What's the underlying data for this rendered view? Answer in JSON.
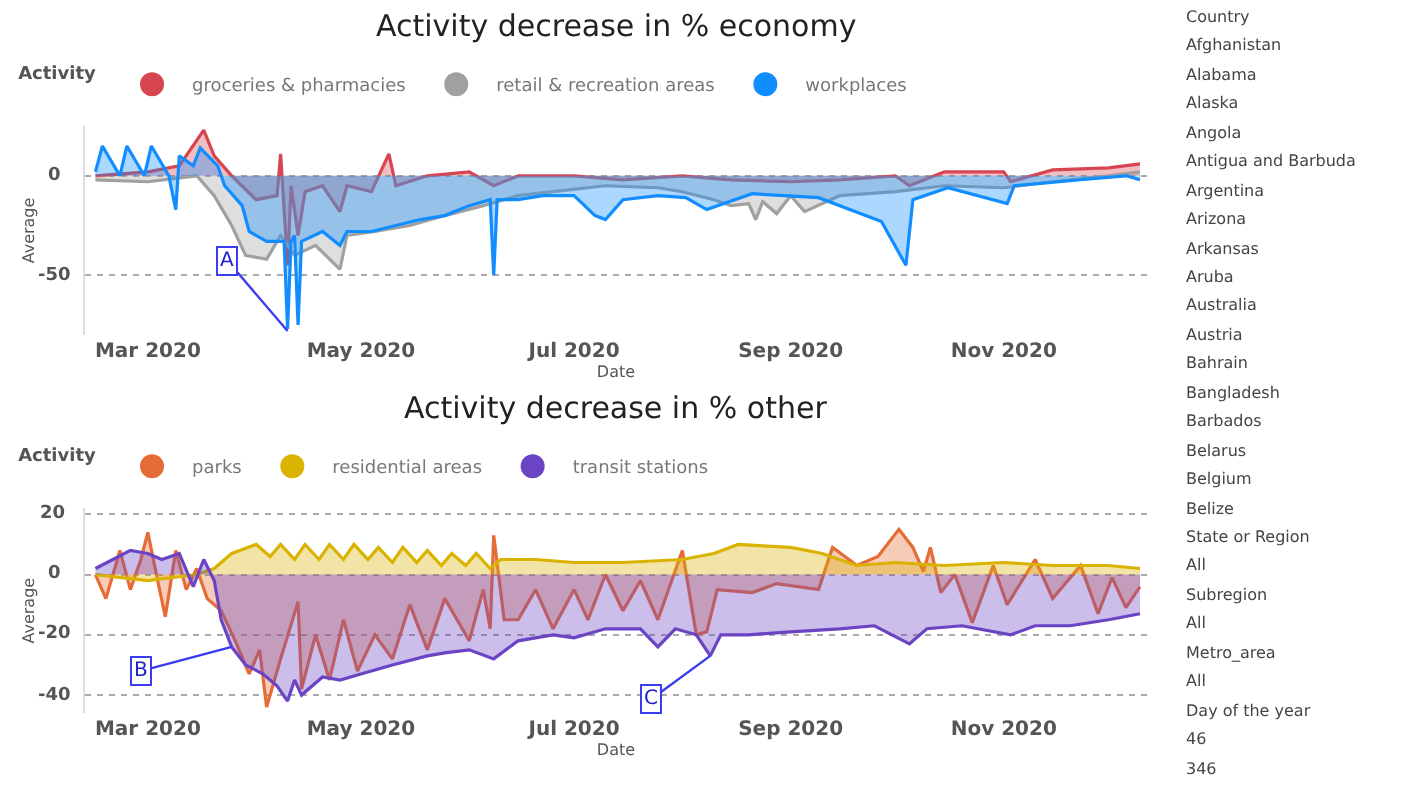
{
  "chart_data": [
    {
      "type": "area",
      "title": "Activity decrease in % economy",
      "xlabel": "Date",
      "ylabel": "Average",
      "legend_title": "Activity",
      "legend": "top left",
      "grid": "y",
      "line_style": "solid",
      "xlim": [
        "2020-02-12",
        "2020-12-12"
      ],
      "xticks": [
        {
          "value": "2020-03-01",
          "label": "Mar 2020"
        },
        {
          "value": "2020-05-01",
          "label": "May 2020"
        },
        {
          "value": "2020-07-01",
          "label": "Jul 2020"
        },
        {
          "value": "2020-09-01",
          "label": "Sep 2020"
        },
        {
          "value": "2020-11-01",
          "label": "Nov 2020"
        }
      ],
      "ylim": [
        -80,
        25
      ],
      "yticks": [
        -50,
        0
      ],
      "annotations": [
        {
          "text": "A",
          "x": "2020-04-10",
          "y": -78
        }
      ],
      "series": [
        {
          "name": "groceries & pharmacies",
          "color": "#d64550",
          "x": [
            "2020-02-15",
            "2020-03-01",
            "2020-03-10",
            "2020-03-17",
            "2020-03-20",
            "2020-03-25",
            "2020-04-01",
            "2020-04-07",
            "2020-04-08",
            "2020-04-10",
            "2020-04-11",
            "2020-04-13",
            "2020-04-15",
            "2020-04-20",
            "2020-04-25",
            "2020-04-27",
            "2020-05-04",
            "2020-05-09",
            "2020-05-11",
            "2020-05-20",
            "2020-06-01",
            "2020-06-08",
            "2020-06-15",
            "2020-07-01",
            "2020-07-15",
            "2020-08-01",
            "2020-08-15",
            "2020-09-01",
            "2020-09-15",
            "2020-10-01",
            "2020-10-05",
            "2020-10-15",
            "2020-11-01",
            "2020-11-03",
            "2020-11-15",
            "2020-12-01",
            "2020-12-10"
          ],
          "values": [
            0,
            2,
            5,
            23,
            10,
            0,
            -12,
            -10,
            11,
            -45,
            -5,
            -30,
            -8,
            -5,
            -18,
            -5,
            -8,
            11,
            -5,
            0,
            2,
            -5,
            0,
            0,
            -2,
            0,
            -2,
            -3,
            -2,
            0,
            -5,
            2,
            2,
            -3,
            3,
            4,
            6
          ]
        },
        {
          "name": "retail & recreation areas",
          "color": "#a0a0a0",
          "x": [
            "2020-02-15",
            "2020-03-01",
            "2020-03-15",
            "2020-03-20",
            "2020-03-25",
            "2020-03-29",
            "2020-04-04",
            "2020-04-08",
            "2020-04-12",
            "2020-04-18",
            "2020-04-25",
            "2020-04-27",
            "2020-05-05",
            "2020-05-15",
            "2020-05-25",
            "2020-06-05",
            "2020-06-15",
            "2020-06-25",
            "2020-07-10",
            "2020-07-25",
            "2020-08-01",
            "2020-08-10",
            "2020-08-15",
            "2020-08-20",
            "2020-08-22",
            "2020-08-24",
            "2020-08-28",
            "2020-09-01",
            "2020-09-05",
            "2020-09-15",
            "2020-10-01",
            "2020-10-15",
            "2020-11-01",
            "2020-11-15",
            "2020-12-01",
            "2020-12-10"
          ],
          "values": [
            -2,
            -3,
            0,
            -10,
            -25,
            -40,
            -42,
            -30,
            -40,
            -35,
            -47,
            -30,
            -28,
            -25,
            -20,
            -15,
            -10,
            -8,
            -5,
            -6,
            -8,
            -12,
            -15,
            -14,
            -22,
            -13,
            -19,
            -10,
            -18,
            -10,
            -8,
            -5,
            -6,
            -3,
            0,
            2
          ]
        },
        {
          "name": "workplaces",
          "color": "#118dff",
          "x": [
            "2020-02-15",
            "2020-02-17",
            "2020-02-22",
            "2020-02-24",
            "2020-02-29",
            "2020-03-02",
            "2020-03-07",
            "2020-03-09",
            "2020-03-10",
            "2020-03-14",
            "2020-03-16",
            "2020-03-21",
            "2020-03-23",
            "2020-03-28",
            "2020-03-30",
            "2020-04-04",
            "2020-04-09",
            "2020-04-10",
            "2020-04-11",
            "2020-04-12",
            "2020-04-13",
            "2020-04-14",
            "2020-04-20",
            "2020-04-25",
            "2020-04-27",
            "2020-05-04",
            "2020-05-11",
            "2020-05-18",
            "2020-05-25",
            "2020-06-01",
            "2020-06-07",
            "2020-06-08",
            "2020-06-09",
            "2020-06-15",
            "2020-06-22",
            "2020-07-01",
            "2020-07-07",
            "2020-07-10",
            "2020-07-15",
            "2020-07-25",
            "2020-08-02",
            "2020-08-08",
            "2020-08-21",
            "2020-09-09",
            "2020-09-27",
            "2020-10-04",
            "2020-10-06",
            "2020-10-16",
            "2020-11-02",
            "2020-11-04",
            "2020-11-23",
            "2020-12-06",
            "2020-12-10"
          ],
          "values": [
            2,
            15,
            0,
            15,
            0,
            15,
            0,
            -17,
            10,
            5,
            14,
            5,
            -5,
            -15,
            -28,
            -33,
            -33,
            -77,
            -33,
            -30,
            -75,
            -33,
            -28,
            -35,
            -28,
            -28,
            -25,
            -22,
            -20,
            -15,
            -12,
            -50,
            -12,
            -12,
            -10,
            -10,
            -20,
            -22,
            -12,
            -10,
            -11,
            -17,
            -9,
            -11,
            -23,
            -45,
            -12,
            -6,
            -14,
            -5,
            -2,
            0,
            -2
          ]
        }
      ]
    },
    {
      "type": "area",
      "title": "Activity decrease in % other",
      "xlabel": "Date",
      "ylabel": "Average",
      "legend_title": "Activity",
      "legend": "top left",
      "grid": "y",
      "line_style": "solid",
      "xlim": [
        "2020-02-12",
        "2020-12-12"
      ],
      "xticks": [
        {
          "value": "2020-03-01",
          "label": "Mar 2020"
        },
        {
          "value": "2020-05-01",
          "label": "May 2020"
        },
        {
          "value": "2020-07-01",
          "label": "Jul 2020"
        },
        {
          "value": "2020-09-01",
          "label": "Sep 2020"
        },
        {
          "value": "2020-11-01",
          "label": "Nov 2020"
        }
      ],
      "ylim": [
        -46,
        22
      ],
      "yticks": [
        -40,
        -20,
        0,
        20
      ],
      "annotations": [
        {
          "text": "B",
          "x": "2020-03-25",
          "y": -24
        },
        {
          "text": "C",
          "x": "2020-08-09",
          "y": -27
        }
      ],
      "series": [
        {
          "name": "parks",
          "color": "#e66c37",
          "x": [
            "2020-02-15",
            "2020-02-18",
            "2020-02-22",
            "2020-02-25",
            "2020-02-28",
            "2020-03-01",
            "2020-03-04",
            "2020-03-06",
            "2020-03-09",
            "2020-03-12",
            "2020-03-15",
            "2020-03-18",
            "2020-03-22",
            "2020-03-26",
            "2020-03-30",
            "2020-04-02",
            "2020-04-04",
            "2020-04-08",
            "2020-04-13",
            "2020-04-14",
            "2020-04-18",
            "2020-04-22",
            "2020-04-26",
            "2020-04-30",
            "2020-05-05",
            "2020-05-10",
            "2020-05-15",
            "2020-05-20",
            "2020-05-25",
            "2020-06-01",
            "2020-06-05",
            "2020-06-07",
            "2020-06-08",
            "2020-06-11",
            "2020-06-15",
            "2020-06-20",
            "2020-06-25",
            "2020-07-01",
            "2020-07-05",
            "2020-07-10",
            "2020-07-15",
            "2020-07-20",
            "2020-07-25",
            "2020-08-01",
            "2020-08-05",
            "2020-08-08",
            "2020-08-11",
            "2020-08-21",
            "2020-08-28",
            "2020-09-09",
            "2020-09-13",
            "2020-09-20",
            "2020-09-26",
            "2020-10-02",
            "2020-10-06",
            "2020-10-09",
            "2020-10-11",
            "2020-10-14",
            "2020-10-18",
            "2020-10-23",
            "2020-10-29",
            "2020-11-02",
            "2020-11-10",
            "2020-11-15",
            "2020-11-23",
            "2020-11-28",
            "2020-12-02",
            "2020-12-06",
            "2020-12-10"
          ],
          "values": [
            0,
            -8,
            8,
            -5,
            5,
            14,
            -3,
            -14,
            8,
            -5,
            2,
            -8,
            -12,
            -22,
            -33,
            -25,
            -44,
            -28,
            -9,
            -38,
            -20,
            -35,
            -15,
            -32,
            -20,
            -28,
            -10,
            -25,
            -8,
            -22,
            -5,
            -18,
            13,
            -15,
            -15,
            -5,
            -18,
            -5,
            -15,
            0,
            -12,
            -2,
            -15,
            8,
            -20,
            -19,
            -5,
            -6,
            -3,
            -5,
            9,
            3,
            6,
            15,
            9,
            1,
            9,
            -6,
            0,
            -16,
            3,
            -10,
            5,
            -8,
            3,
            -13,
            -1,
            -11,
            -4
          ]
        },
        {
          "name": "residential areas",
          "color": "#d9b300",
          "x": [
            "2020-02-15",
            "2020-03-01",
            "2020-03-15",
            "2020-03-20",
            "2020-03-25",
            "2020-04-01",
            "2020-04-05",
            "2020-04-08",
            "2020-04-12",
            "2020-04-15",
            "2020-04-19",
            "2020-04-22",
            "2020-04-26",
            "2020-04-29",
            "2020-05-03",
            "2020-05-06",
            "2020-05-10",
            "2020-05-13",
            "2020-05-17",
            "2020-05-20",
            "2020-05-24",
            "2020-05-27",
            "2020-05-31",
            "2020-06-03",
            "2020-06-07",
            "2020-06-10",
            "2020-06-20",
            "2020-07-01",
            "2020-07-15",
            "2020-08-01",
            "2020-08-10",
            "2020-08-17",
            "2020-09-01",
            "2020-09-10",
            "2020-09-20",
            "2020-10-01",
            "2020-10-15",
            "2020-11-01",
            "2020-11-15",
            "2020-12-01",
            "2020-12-10"
          ],
          "values": [
            0,
            -2,
            0,
            2,
            7,
            10,
            6,
            10,
            5,
            10,
            5,
            10,
            5,
            10,
            5,
            9,
            4,
            9,
            4,
            8,
            3,
            7,
            3,
            7,
            2,
            5,
            5,
            4,
            4,
            5,
            7,
            10,
            9,
            7,
            3,
            4,
            3,
            4,
            3,
            3,
            2
          ]
        },
        {
          "name": "transit stations",
          "color": "#6b44c4",
          "x": [
            "2020-02-15",
            "2020-02-20",
            "2020-02-25",
            "2020-03-01",
            "2020-03-05",
            "2020-03-10",
            "2020-03-14",
            "2020-03-17",
            "2020-03-20",
            "2020-03-22",
            "2020-03-25",
            "2020-03-29",
            "2020-04-03",
            "2020-04-07",
            "2020-04-10",
            "2020-04-12",
            "2020-04-14",
            "2020-04-20",
            "2020-04-25",
            "2020-05-01",
            "2020-05-10",
            "2020-05-20",
            "2020-05-25",
            "2020-06-01",
            "2020-06-08",
            "2020-06-15",
            "2020-06-25",
            "2020-07-01",
            "2020-07-10",
            "2020-07-20",
            "2020-07-25",
            "2020-07-30",
            "2020-08-05",
            "2020-08-09",
            "2020-08-12",
            "2020-08-20",
            "2020-09-01",
            "2020-09-15",
            "2020-09-25",
            "2020-10-05",
            "2020-10-10",
            "2020-10-20",
            "2020-11-03",
            "2020-11-10",
            "2020-11-20",
            "2020-12-01",
            "2020-12-10"
          ],
          "values": [
            2,
            5,
            8,
            7,
            5,
            7,
            -4,
            5,
            -2,
            -15,
            -24,
            -30,
            -33,
            -37,
            -42,
            -35,
            -40,
            -34,
            -35,
            -33,
            -30,
            -27,
            -26,
            -25,
            -28,
            -22,
            -20,
            -21,
            -18,
            -18,
            -24,
            -18,
            -20,
            -27,
            -20,
            -20,
            -19,
            -18,
            -17,
            -23,
            -18,
            -17,
            -20,
            -17,
            -17,
            -15,
            -13
          ]
        }
      ]
    },
    {
      "type": "other",
      "annotations": [
        "Country",
        "Afghanistan",
        "Alabama",
        "Alaska",
        "Angola",
        "Antigua and Barbuda",
        "Argentina",
        "Arizona",
        "Arkansas",
        "Aruba",
        "Australia",
        "Austria",
        "Bahrain",
        "Bangladesh",
        "Barbados",
        "Belarus",
        "Belgium",
        "Belize",
        "State or Region",
        "All",
        "Subregion",
        "All",
        "Metro_area",
        "All",
        "Day of the year",
        "46",
        "346"
      ]
    }
  ]
}
